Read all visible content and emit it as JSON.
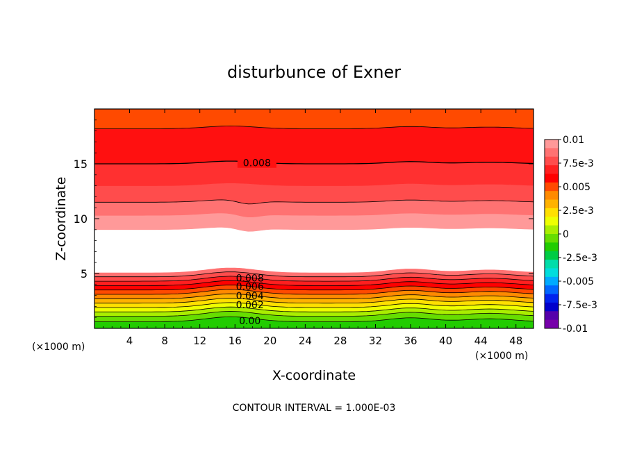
{
  "chart_data": {
    "type": "heatmap",
    "title": "disturbunce of Exner",
    "xlabel": "X-coordinate",
    "ylabel": "Z-coordinate",
    "x_unit": "(×1000 m)",
    "z_unit": "(×1000 m)",
    "xlim": [
      0,
      50
    ],
    "ylim": [
      0,
      20
    ],
    "x_ticks": [
      "4",
      "8",
      "12",
      "16",
      "20",
      "24",
      "28",
      "32",
      "36",
      "40",
      "44",
      "48"
    ],
    "y_ticks": [
      "5",
      "10",
      "15"
    ],
    "x_tick_values": [
      4,
      8,
      12,
      16,
      20,
      24,
      28,
      32,
      36,
      40,
      44,
      48
    ],
    "y_tick_values": [
      5,
      10,
      15
    ],
    "footer": "CONTOUR INTERVAL = 1.000E-03",
    "contour_interval": 0.001,
    "contour_labels_upper": [
      "0.008"
    ],
    "contour_labels_lower": [
      "0.008",
      "0.006",
      "0.004",
      "0.002",
      "0.00"
    ],
    "colorbar": {
      "min": -0.01,
      "max": 0.01,
      "tick_labels": [
        "0.01",
        "7.5e-3",
        "0.005",
        "2.5e-3",
        "0",
        "-2.5e-3",
        "-0.005",
        "-7.5e-3",
        "-0.01"
      ],
      "tick_values": [
        0.01,
        0.0075,
        0.005,
        0.0025,
        0,
        -0.0025,
        -0.005,
        -0.0075,
        -0.01
      ],
      "colors_top_to_bottom": [
        "#ff9999",
        "#ff7272",
        "#ff4c4c",
        "#ff1f1f",
        "#ff0000",
        "#ff4a00",
        "#ff8a00",
        "#ffb200",
        "#ffe000",
        "#eeff00",
        "#aaee00",
        "#66dd00",
        "#22cc00",
        "#00cc44",
        "#00ddaa",
        "#00dddd",
        "#00aaff",
        "#0066ff",
        "#0022ee",
        "#0000cc",
        "#5500aa",
        "#7700aa"
      ]
    },
    "layers": [
      {
        "z0": 0.0,
        "z1": 0.6,
        "color": "#22cc00"
      },
      {
        "z0": 0.6,
        "z1": 1.1,
        "color": "#66dd00"
      },
      {
        "z0": 1.1,
        "z1": 1.5,
        "color": "#aaee00"
      },
      {
        "z0": 1.5,
        "z1": 1.9,
        "color": "#eeff00"
      },
      {
        "z0": 1.9,
        "z1": 2.3,
        "color": "#ffe000"
      },
      {
        "z0": 2.3,
        "z1": 2.7,
        "color": "#ffb200"
      },
      {
        "z0": 2.7,
        "z1": 3.1,
        "color": "#ff8a00"
      },
      {
        "z0": 3.1,
        "z1": 3.5,
        "color": "#ff4a00"
      },
      {
        "z0": 3.5,
        "z1": 3.9,
        "color": "#ff0000"
      },
      {
        "z0": 3.9,
        "z1": 4.3,
        "color": "#ff1f1f"
      },
      {
        "z0": 4.3,
        "z1": 4.7,
        "color": "#ff4c4c"
      },
      {
        "z0": 4.7,
        "z1": 5.1,
        "color": "#ff7272"
      },
      {
        "z0": 5.1,
        "z1": 9.0,
        "color": "#ffffff"
      },
      {
        "z0": 9.0,
        "z1": 10.3,
        "color": "#ff9999"
      },
      {
        "z0": 10.3,
        "z1": 11.5,
        "color": "#ff7272"
      },
      {
        "z0": 11.5,
        "z1": 13.0,
        "color": "#ff4c4c"
      },
      {
        "z0": 13.0,
        "z1": 15.0,
        "color": "#ff3030"
      },
      {
        "z0": 15.0,
        "z1": 18.2,
        "color": "#ff1010"
      },
      {
        "z0": 18.2,
        "z1": 20.0,
        "color": "#ff4a00"
      }
    ]
  }
}
